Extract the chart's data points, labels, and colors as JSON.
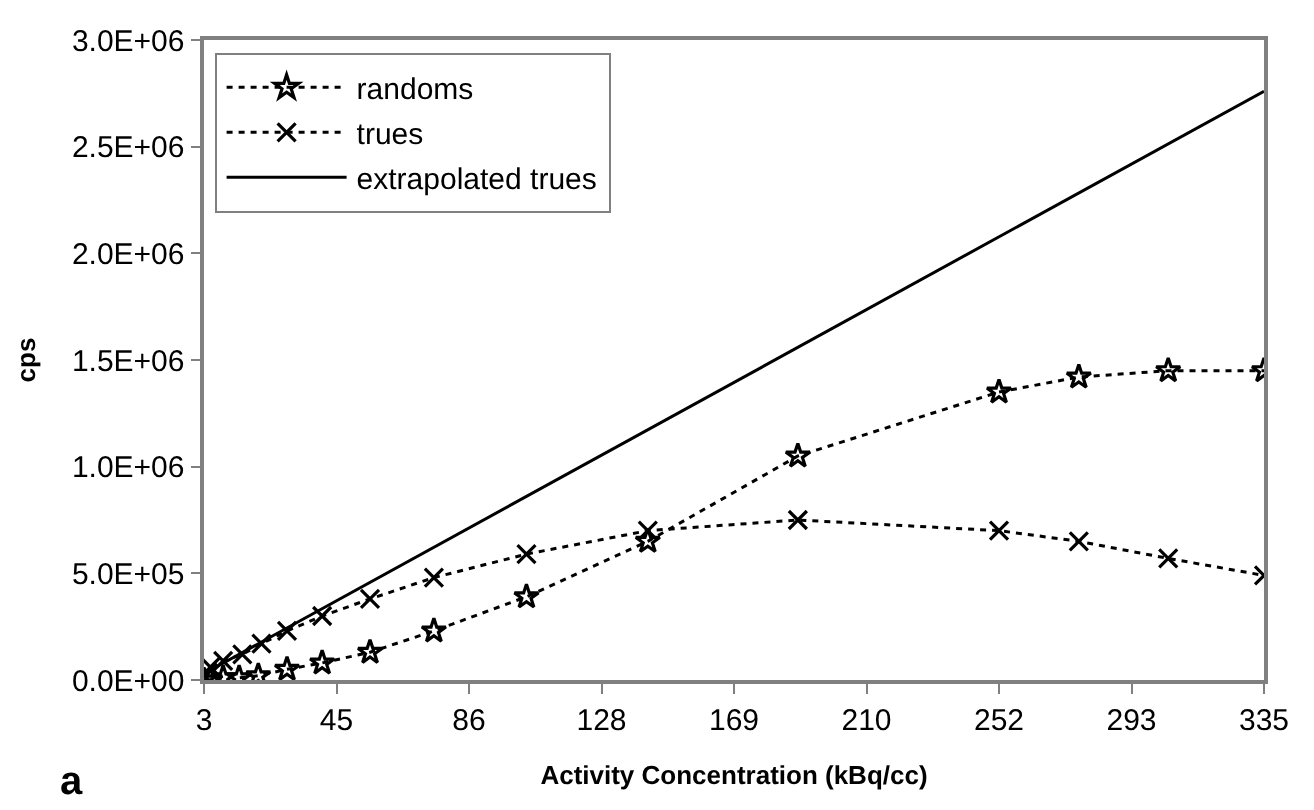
{
  "chart_data": {
    "type": "line",
    "xlabel": "Activity Concentration (kBq/cc)",
    "ylabel": "cps",
    "annotations": [
      "a"
    ],
    "xlim": [
      3,
      335
    ],
    "xticks": [
      {
        "value": 3,
        "label": "3"
      },
      {
        "value": 44.5,
        "label": "45"
      },
      {
        "value": 86,
        "label": "86"
      },
      {
        "value": 127.5,
        "label": "128"
      },
      {
        "value": 169,
        "label": "169"
      },
      {
        "value": 210.5,
        "label": "210"
      },
      {
        "value": 252,
        "label": "252"
      },
      {
        "value": 293.5,
        "label": "293"
      },
      {
        "value": 335,
        "label": "335"
      }
    ],
    "ylim": [
      0,
      3000000
    ],
    "yticks": [
      {
        "value": 0,
        "label": "0.0E+00"
      },
      {
        "value": 500000,
        "label": "5.0E+05"
      },
      {
        "value": 1000000,
        "label": "1.0E+06"
      },
      {
        "value": 1500000,
        "label": "1.5E+06"
      },
      {
        "value": 2000000,
        "label": "2.0E+06"
      },
      {
        "value": 2500000,
        "label": "2.5E+06"
      },
      {
        "value": 3000000,
        "label": "3.0E+06"
      }
    ],
    "legend": "top left",
    "series": [
      {
        "name": "randoms",
        "color": "#000000",
        "marker": "star",
        "line_style": "dotted",
        "x": [
          3,
          5,
          9,
          14,
          20,
          29,
          40,
          55,
          75,
          104,
          142,
          189,
          252,
          277,
          305,
          335
        ],
        "values": [
          0,
          0,
          10000,
          10000,
          20000,
          50000,
          80000,
          130000,
          230000,
          390000,
          650000,
          1050000,
          1350000,
          1420000,
          1450000,
          1450000
        ]
      },
      {
        "name": "trues",
        "color": "#000000",
        "marker": "cross",
        "line_style": "dotted",
        "x": [
          3,
          5,
          9,
          15,
          21,
          29,
          40,
          55,
          75,
          104,
          142,
          189,
          252,
          277,
          305,
          335
        ],
        "values": [
          20000,
          60000,
          90000,
          120000,
          170000,
          230000,
          300000,
          380000,
          480000,
          590000,
          700000,
          750000,
          700000,
          650000,
          570000,
          490000
        ]
      },
      {
        "name": "extrapolated trues",
        "color": "#000000",
        "line_style": "solid",
        "x": [
          3,
          335
        ],
        "values": [
          30000,
          2760000
        ]
      }
    ]
  }
}
